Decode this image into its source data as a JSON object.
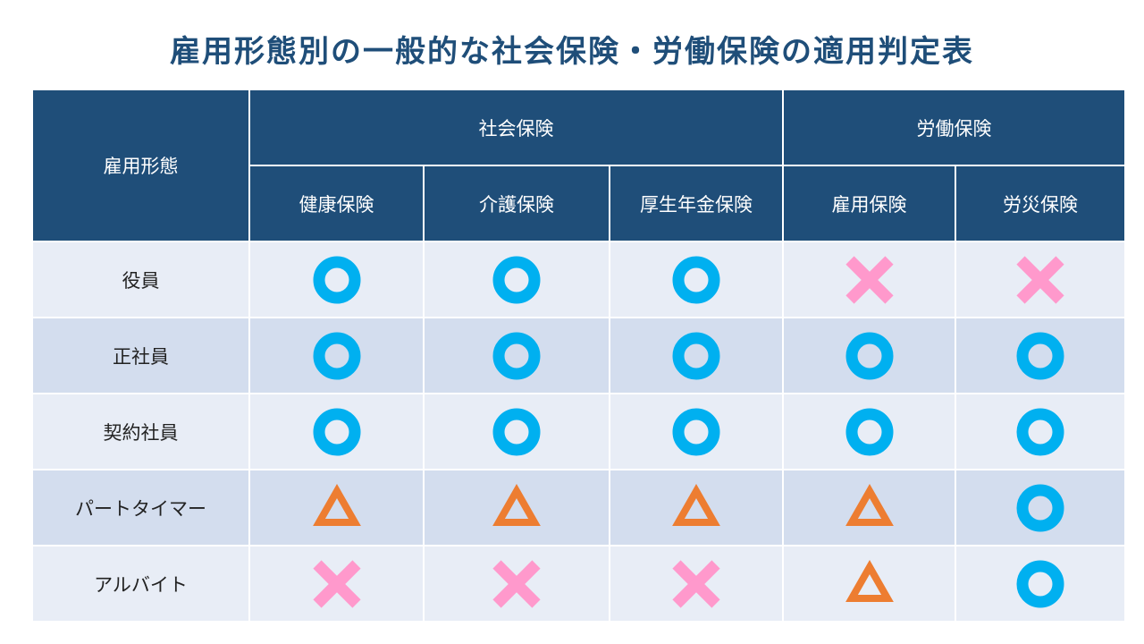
{
  "title": "雇用形態別の一般的な社会保険・労働保険の適用判定表",
  "header": {
    "employment_type": "雇用形態",
    "groups": [
      {
        "label": "社会保険",
        "span": 3
      },
      {
        "label": "労働保険",
        "span": 2
      }
    ],
    "columns": [
      "健康保険",
      "介護保険",
      "厚生年金保険",
      "雇用保険",
      "労災保険"
    ]
  },
  "rows": [
    {
      "label": "役員",
      "marks": [
        "circle",
        "circle",
        "circle",
        "cross",
        "cross"
      ]
    },
    {
      "label": "正社員",
      "marks": [
        "circle",
        "circle",
        "circle",
        "circle",
        "circle"
      ]
    },
    {
      "label": "契約社員",
      "marks": [
        "circle",
        "circle",
        "circle",
        "circle",
        "circle"
      ]
    },
    {
      "label": "パートタイマー",
      "marks": [
        "triangle",
        "triangle",
        "triangle",
        "triangle",
        "circle"
      ]
    },
    {
      "label": "アルバイト",
      "marks": [
        "cross",
        "cross",
        "cross",
        "triangle",
        "circle"
      ]
    }
  ],
  "colors": {
    "header_bg": "#1f4e79",
    "title": "#1f4e79",
    "row_light": "#e8edf6",
    "row_dark": "#d3ddee",
    "circle": "#00b0f0",
    "cross": "#ff99cc",
    "triangle": "#ed7d31"
  },
  "icons": {
    "circle": "applicable-circle-icon",
    "cross": "not-applicable-cross-icon",
    "triangle": "conditional-triangle-icon"
  }
}
